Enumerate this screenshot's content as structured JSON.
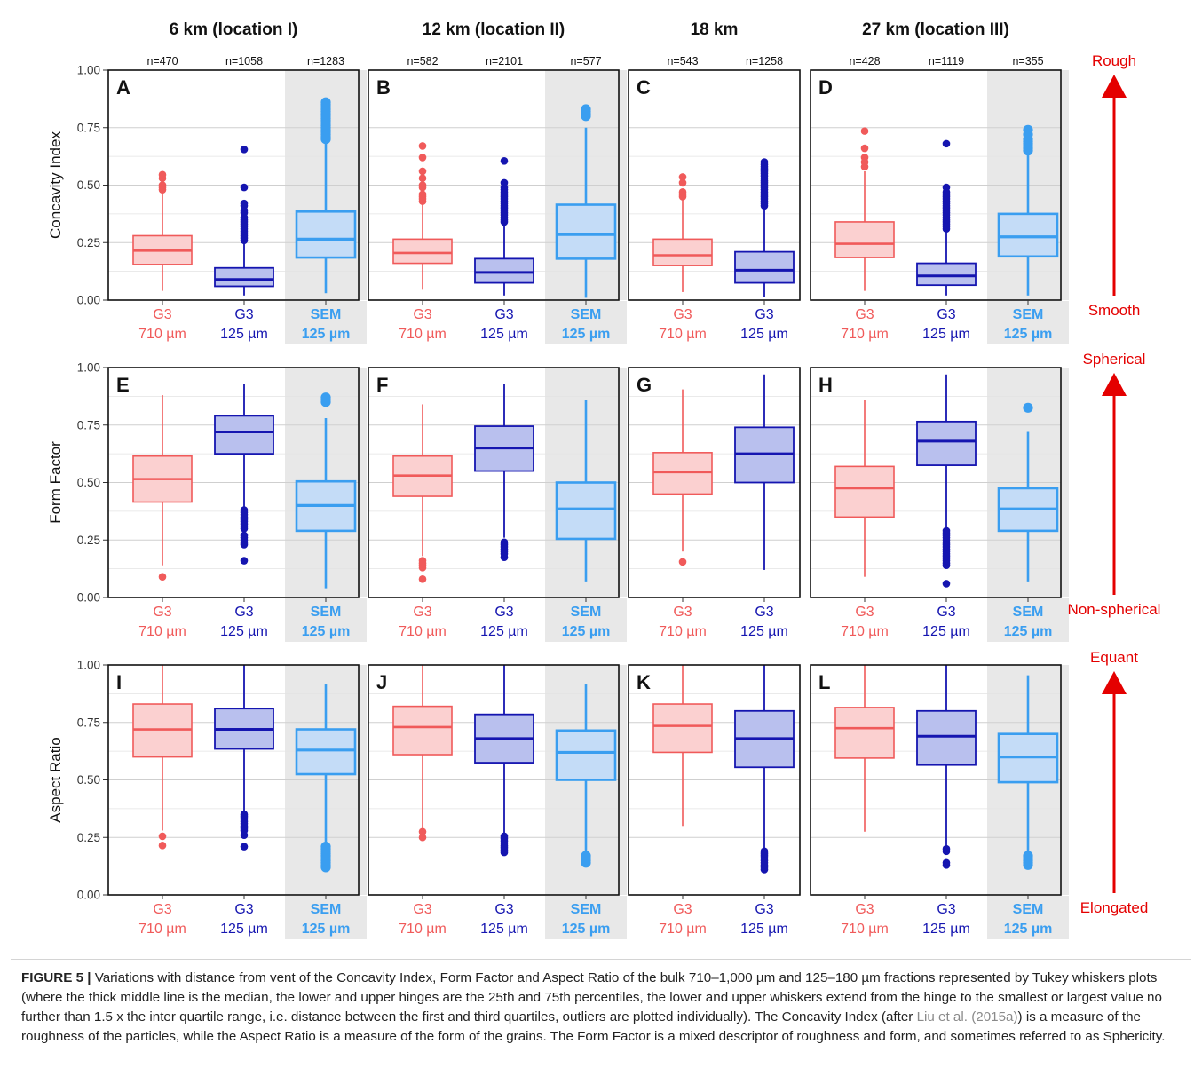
{
  "chart_data": {
    "type": "box",
    "columns": [
      {
        "title": "6 km (location I)",
        "groups": [
          {
            "label": "G3",
            "sublabel": "710 µm",
            "n": "n=470",
            "style": "red"
          },
          {
            "label": "G3",
            "sublabel": "125 µm",
            "n": "n=1058",
            "style": "navy"
          },
          {
            "label": "SEM",
            "sublabel": "125 µm",
            "n": "n=1283",
            "style": "blue",
            "shaded": true
          }
        ]
      },
      {
        "title": "12 km (location II)",
        "groups": [
          {
            "label": "G3",
            "sublabel": "710 µm",
            "n": "n=582",
            "style": "red"
          },
          {
            "label": "G3",
            "sublabel": "125 µm",
            "n": "n=2101",
            "style": "navy"
          },
          {
            "label": "SEM",
            "sublabel": "125 µm",
            "n": "n=577",
            "style": "blue",
            "shaded": true
          }
        ]
      },
      {
        "title": "18 km",
        "groups": [
          {
            "label": "G3",
            "sublabel": "710 µm",
            "n": "n=543",
            "style": "red"
          },
          {
            "label": "G3",
            "sublabel": "125 µm",
            "n": "n=1258",
            "style": "navy"
          }
        ]
      },
      {
        "title": "27 km (location III)",
        "groups": [
          {
            "label": "G3",
            "sublabel": "710 µm",
            "n": "n=428",
            "style": "red"
          },
          {
            "label": "G3",
            "sublabel": "125 µm",
            "n": "n=1119",
            "style": "navy"
          },
          {
            "label": "SEM",
            "sublabel": "125 µm",
            "n": "n=355",
            "style": "blue",
            "shaded": true
          }
        ]
      }
    ],
    "rows": [
      {
        "ylabel": "Concavity Index",
        "ylim": [
          0,
          1
        ],
        "yticks": [
          "0.00",
          "0.25",
          "0.50",
          "0.75",
          "1.00"
        ],
        "arrow_top": "Rough",
        "arrow_bottom": "Smooth",
        "panels": [
          {
            "letter": "A",
            "boxes": [
              {
                "whislo": 0.04,
                "q1": 0.155,
                "med": 0.215,
                "q3": 0.28,
                "whishi": 0.47,
                "fliers": [
                  0.48,
                  0.49,
                  0.5,
                  0.53,
                  0.545
                ]
              },
              {
                "whislo": 0.02,
                "q1": 0.06,
                "med": 0.09,
                "q3": 0.14,
                "whishi": 0.255,
                "fliers": [
                  0.26,
                  0.27,
                  0.28,
                  0.29,
                  0.3,
                  0.31,
                  0.32,
                  0.33,
                  0.34,
                  0.35,
                  0.36,
                  0.38,
                  0.39,
                  0.41,
                  0.42,
                  0.49,
                  0.655
                ]
              },
              {
                "whislo": 0.03,
                "q1": 0.185,
                "med": 0.265,
                "q3": 0.385,
                "whishi": 0.69,
                "fliers": [
                  0.7,
                  0.71,
                  0.72,
                  0.73,
                  0.74,
                  0.75,
                  0.76,
                  0.77,
                  0.78,
                  0.79,
                  0.8,
                  0.81,
                  0.82,
                  0.83,
                  0.84,
                  0.85,
                  0.86
                ]
              }
            ]
          },
          {
            "letter": "B",
            "boxes": [
              {
                "whislo": 0.045,
                "q1": 0.16,
                "med": 0.205,
                "q3": 0.265,
                "whishi": 0.42,
                "fliers": [
                  0.43,
                  0.44,
                  0.45,
                  0.46,
                  0.49,
                  0.5,
                  0.53,
                  0.56,
                  0.62,
                  0.67
                ]
              },
              {
                "whislo": 0.02,
                "q1": 0.075,
                "med": 0.12,
                "q3": 0.18,
                "whishi": 0.33,
                "fliers": [
                  0.34,
                  0.35,
                  0.36,
                  0.37,
                  0.38,
                  0.39,
                  0.4,
                  0.41,
                  0.42,
                  0.43,
                  0.44,
                  0.45,
                  0.46,
                  0.47,
                  0.48,
                  0.49,
                  0.51,
                  0.605
                ]
              },
              {
                "whislo": 0.01,
                "q1": 0.18,
                "med": 0.285,
                "q3": 0.415,
                "whishi": 0.75,
                "fliers": [
                  0.8,
                  0.81,
                  0.82,
                  0.83
                ]
              }
            ]
          },
          {
            "letter": "C",
            "boxes": [
              {
                "whislo": 0.035,
                "q1": 0.15,
                "med": 0.195,
                "q3": 0.265,
                "whishi": 0.44,
                "fliers": [
                  0.45,
                  0.46,
                  0.47,
                  0.51,
                  0.535
                ]
              },
              {
                "whislo": 0.015,
                "q1": 0.075,
                "med": 0.13,
                "q3": 0.21,
                "whishi": 0.4,
                "fliers": [
                  0.41,
                  0.42,
                  0.43,
                  0.44,
                  0.45,
                  0.46,
                  0.47,
                  0.48,
                  0.49,
                  0.5,
                  0.51,
                  0.52,
                  0.53,
                  0.54,
                  0.55,
                  0.56,
                  0.57,
                  0.58,
                  0.59,
                  0.6
                ]
              }
            ]
          },
          {
            "letter": "D",
            "boxes": [
              {
                "whislo": 0.04,
                "q1": 0.185,
                "med": 0.245,
                "q3": 0.34,
                "whishi": 0.56,
                "fliers": [
                  0.58,
                  0.6,
                  0.62,
                  0.66,
                  0.735
                ]
              },
              {
                "whislo": 0.02,
                "q1": 0.065,
                "med": 0.105,
                "q3": 0.16,
                "whishi": 0.3,
                "fliers": [
                  0.31,
                  0.32,
                  0.33,
                  0.34,
                  0.35,
                  0.36,
                  0.37,
                  0.38,
                  0.39,
                  0.4,
                  0.41,
                  0.42,
                  0.43,
                  0.44,
                  0.45,
                  0.46,
                  0.47,
                  0.49,
                  0.68
                ]
              },
              {
                "whislo": 0.02,
                "q1": 0.19,
                "med": 0.275,
                "q3": 0.375,
                "whishi": 0.64,
                "fliers": [
                  0.65,
                  0.66,
                  0.67,
                  0.68,
                  0.69,
                  0.7,
                  0.72,
                  0.74
                ]
              }
            ]
          }
        ]
      },
      {
        "ylabel": "Form Factor",
        "ylim": [
          0,
          1
        ],
        "yticks": [
          "0.00",
          "0.25",
          "0.50",
          "0.75",
          "1.00"
        ],
        "arrow_top": "Spherical",
        "arrow_bottom": "Non-spherical",
        "panels": [
          {
            "letter": "E",
            "boxes": [
              {
                "whislo": 0.14,
                "q1": 0.415,
                "med": 0.515,
                "q3": 0.615,
                "whishi": 0.88,
                "fliers": [
                  0.09
                ]
              },
              {
                "whislo": 0.39,
                "q1": 0.625,
                "med": 0.72,
                "q3": 0.79,
                "whishi": 0.93,
                "fliers": [
                  0.16,
                  0.23,
                  0.24,
                  0.25,
                  0.26,
                  0.27,
                  0.3,
                  0.31,
                  0.32,
                  0.33,
                  0.34,
                  0.35,
                  0.36,
                  0.37,
                  0.38
                ]
              },
              {
                "whislo": 0.04,
                "q1": 0.29,
                "med": 0.4,
                "q3": 0.505,
                "whishi": 0.78,
                "fliers": [
                  0.85,
                  0.86,
                  0.87
                ]
              }
            ]
          },
          {
            "letter": "F",
            "boxes": [
              {
                "whislo": 0.18,
                "q1": 0.44,
                "med": 0.53,
                "q3": 0.615,
                "whishi": 0.84,
                "fliers": [
                  0.08,
                  0.13,
                  0.14,
                  0.15,
                  0.16
                ]
              },
              {
                "whislo": 0.26,
                "q1": 0.55,
                "med": 0.65,
                "q3": 0.745,
                "whishi": 0.93,
                "fliers": [
                  0.175,
                  0.19,
                  0.2,
                  0.21,
                  0.22,
                  0.23,
                  0.24
                ]
              },
              {
                "whislo": 0.07,
                "q1": 0.255,
                "med": 0.385,
                "q3": 0.5,
                "whishi": 0.86,
                "fliers": []
              }
            ]
          },
          {
            "letter": "G",
            "boxes": [
              {
                "whislo": 0.2,
                "q1": 0.45,
                "med": 0.545,
                "q3": 0.63,
                "whishi": 0.905,
                "fliers": [
                  0.155
                ]
              },
              {
                "whislo": 0.12,
                "q1": 0.5,
                "med": 0.625,
                "q3": 0.74,
                "whishi": 0.97,
                "fliers": []
              }
            ]
          },
          {
            "letter": "H",
            "boxes": [
              {
                "whislo": 0.09,
                "q1": 0.35,
                "med": 0.475,
                "q3": 0.57,
                "whishi": 0.86,
                "fliers": []
              },
              {
                "whislo": 0.3,
                "q1": 0.575,
                "med": 0.68,
                "q3": 0.765,
                "whishi": 0.97,
                "fliers": [
                  0.06,
                  0.14,
                  0.15,
                  0.16,
                  0.17,
                  0.18,
                  0.19,
                  0.2,
                  0.21,
                  0.22,
                  0.23,
                  0.24,
                  0.25,
                  0.26,
                  0.27,
                  0.28,
                  0.29
                ]
              },
              {
                "whislo": 0.07,
                "q1": 0.29,
                "med": 0.385,
                "q3": 0.475,
                "whishi": 0.72,
                "fliers": [
                  0.825
                ]
              }
            ]
          }
        ]
      },
      {
        "ylabel": "Aspect Ratio",
        "ylim": [
          0,
          1
        ],
        "yticks": [
          "0.00",
          "0.25",
          "0.50",
          "0.75",
          "1.00"
        ],
        "arrow_top": "Equant",
        "arrow_bottom": "Elongated",
        "panels": [
          {
            "letter": "I",
            "boxes": [
              {
                "whislo": 0.28,
                "q1": 0.6,
                "med": 0.72,
                "q3": 0.83,
                "whishi": 1.0,
                "fliers": [
                  0.215,
                  0.255
                ]
              },
              {
                "whislo": 0.36,
                "q1": 0.635,
                "med": 0.72,
                "q3": 0.81,
                "whishi": 1.0,
                "fliers": [
                  0.21,
                  0.26,
                  0.28,
                  0.29,
                  0.3,
                  0.31,
                  0.32,
                  0.33,
                  0.34,
                  0.35
                ]
              },
              {
                "whislo": 0.22,
                "q1": 0.525,
                "med": 0.63,
                "q3": 0.72,
                "whishi": 0.915,
                "fliers": [
                  0.12,
                  0.13,
                  0.14,
                  0.15,
                  0.16,
                  0.17,
                  0.18,
                  0.19,
                  0.2,
                  0.21
                ]
              }
            ]
          },
          {
            "letter": "J",
            "boxes": [
              {
                "whislo": 0.29,
                "q1": 0.61,
                "med": 0.73,
                "q3": 0.82,
                "whishi": 1.0,
                "fliers": [
                  0.25,
                  0.275
                ]
              },
              {
                "whislo": 0.26,
                "q1": 0.575,
                "med": 0.68,
                "q3": 0.785,
                "whishi": 1.0,
                "fliers": [
                  0.185,
                  0.195,
                  0.205,
                  0.215,
                  0.225,
                  0.235,
                  0.245,
                  0.255
                ]
              },
              {
                "whislo": 0.18,
                "q1": 0.5,
                "med": 0.62,
                "q3": 0.715,
                "whishi": 0.915,
                "fliers": [
                  0.14,
                  0.15,
                  0.16,
                  0.17
                ]
              }
            ]
          },
          {
            "letter": "K",
            "boxes": [
              {
                "whislo": 0.3,
                "q1": 0.62,
                "med": 0.735,
                "q3": 0.83,
                "whishi": 1.0,
                "fliers": []
              },
              {
                "whislo": 0.2,
                "q1": 0.555,
                "med": 0.68,
                "q3": 0.8,
                "whishi": 1.0,
                "fliers": [
                  0.11,
                  0.12,
                  0.13,
                  0.14,
                  0.15,
                  0.16,
                  0.17,
                  0.18,
                  0.19
                ]
              }
            ]
          },
          {
            "letter": "L",
            "boxes": [
              {
                "whislo": 0.275,
                "q1": 0.595,
                "med": 0.725,
                "q3": 0.815,
                "whishi": 1.0,
                "fliers": []
              },
              {
                "whislo": 0.21,
                "q1": 0.565,
                "med": 0.69,
                "q3": 0.8,
                "whishi": 1.0,
                "fliers": [
                  0.13,
                  0.14,
                  0.19,
                  0.2
                ]
              },
              {
                "whislo": 0.18,
                "q1": 0.49,
                "med": 0.6,
                "q3": 0.7,
                "whishi": 0.955,
                "fliers": [
                  0.13,
                  0.14,
                  0.15,
                  0.16,
                  0.17
                ]
              }
            ]
          }
        ]
      }
    ],
    "colors": {
      "red": {
        "stroke": "#f05a5a",
        "fill": "#fbd0d0"
      },
      "navy": {
        "stroke": "#1515b0",
        "fill": "#b9c0ee"
      },
      "blue": {
        "stroke": "#3a9ef0",
        "fill": "#c4dcf7"
      },
      "shade": "#e8e8e8",
      "arrow": "#e40000"
    }
  },
  "caption": {
    "lead": "FIGURE 5 |",
    "text_1": " Variations with distance from vent of the Concavity Index, Form Factor and Aspect Ratio of the bulk 710–1,000 µm and 125–180 µm fractions represented by Tukey whiskers plots (where the thick middle line is the median, the lower and upper hinges are the 25th and 75th percentiles, the lower and upper whiskers extend from the hinge to the smallest or largest value no further than 1.5 x the inter quartile range, i.e. distance between the first and third quartiles, outliers are plotted individually). The Concavity Index (after ",
    "link": "Liu et al. (2015a)",
    "text_2": ") is a measure of the roughness of the particles, while the Aspect Ratio is a measure of the form of the grains. The Form Factor is a mixed descriptor of roughness and form, and sometimes referred to as Sphericity."
  }
}
